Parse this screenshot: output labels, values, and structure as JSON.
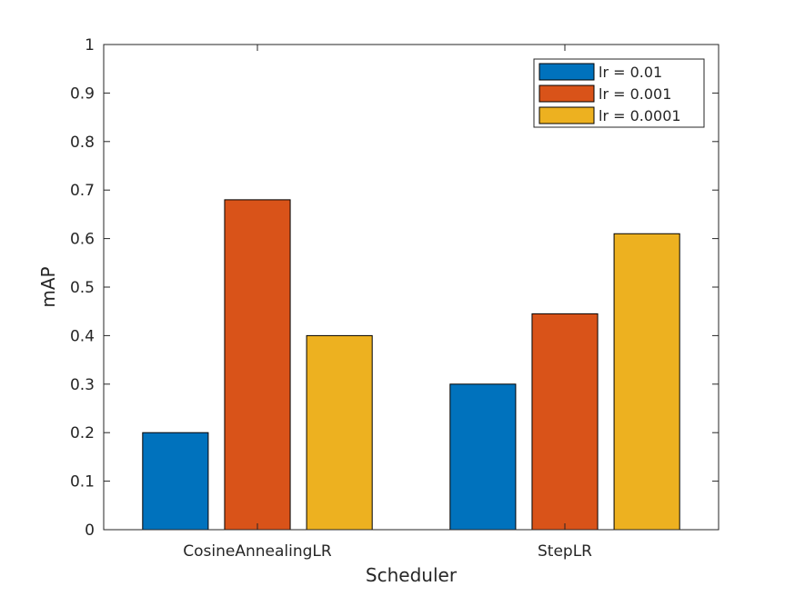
{
  "chart_data": {
    "type": "bar",
    "categories": [
      "CosineAnnealingLR",
      "StepLR"
    ],
    "series": [
      {
        "name": "lr = 0.01",
        "values": [
          0.2,
          0.3
        ],
        "color": "#0072BD"
      },
      {
        "name": "lr = 0.001",
        "values": [
          0.68,
          0.445
        ],
        "color": "#D95319"
      },
      {
        "name": "lr = 0.0001",
        "values": [
          0.4,
          0.61
        ],
        "color": "#EDB120"
      }
    ],
    "xlabel": "Scheduler",
    "ylabel": "mAP",
    "ylim": [
      0,
      1
    ],
    "yticks": [
      "0",
      "0.1",
      "0.2",
      "0.3",
      "0.4",
      "0.5",
      "0.6",
      "0.7",
      "0.8",
      "0.9",
      "1"
    ],
    "grid": false,
    "legend_position": "top-right"
  }
}
